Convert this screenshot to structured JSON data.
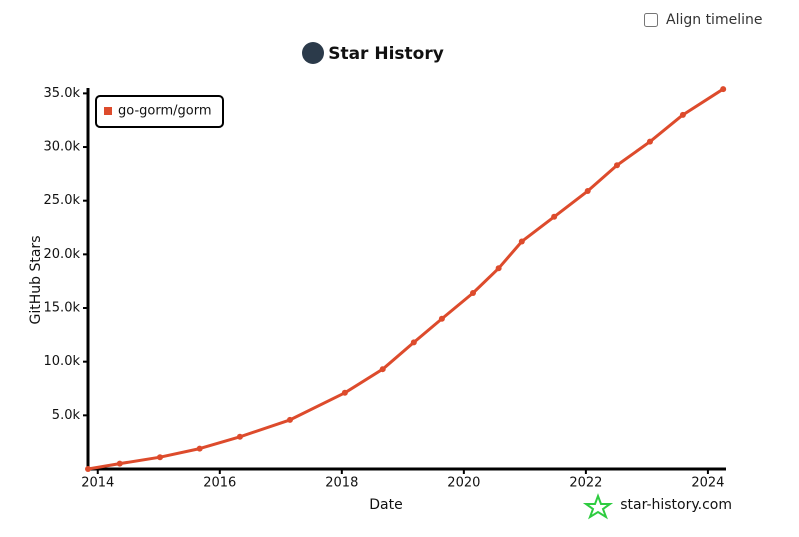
{
  "controls": {
    "align_timeline": "Align timeline"
  },
  "chart_data": {
    "type": "line",
    "title": "Star History",
    "xlabel": "Date",
    "ylabel": "GitHub Stars",
    "watermark": "star-history.com",
    "x": [
      2013.84,
      2014.36,
      2015.02,
      2015.67,
      2016.33,
      2017.15,
      2018.05,
      2018.67,
      2019.18,
      2019.64,
      2020.15,
      2020.57,
      2020.95,
      2021.48,
      2022.03,
      2022.51,
      2023.05,
      2023.59,
      2024.25
    ],
    "series": [
      {
        "name": "go-gorm/gorm",
        "color": "#dd4b2c",
        "values": [
          0,
          500,
          1100,
          1900,
          3000,
          4575,
          7100,
          9300,
          11800,
          14000,
          16400,
          18700,
          21200,
          23500,
          25900,
          28300,
          30500,
          33000,
          35400
        ]
      }
    ],
    "xlim": [
      2013.84,
      2024.28
    ],
    "xticks": [
      2014,
      2016,
      2018,
      2020,
      2022,
      2024
    ],
    "ylim": [
      0,
      35500
    ],
    "yticks": [
      {
        "value": 5000,
        "label": "5.0k"
      },
      {
        "value": 10000,
        "label": "10.0k"
      },
      {
        "value": 15000,
        "label": "15.0k"
      },
      {
        "value": 20000,
        "label": "20.0k"
      },
      {
        "value": 25000,
        "label": "25.0k"
      },
      {
        "value": 30000,
        "label": "30.0k"
      },
      {
        "value": 35000,
        "label": "35.0k"
      }
    ],
    "grid": false,
    "legend": "upper left"
  }
}
